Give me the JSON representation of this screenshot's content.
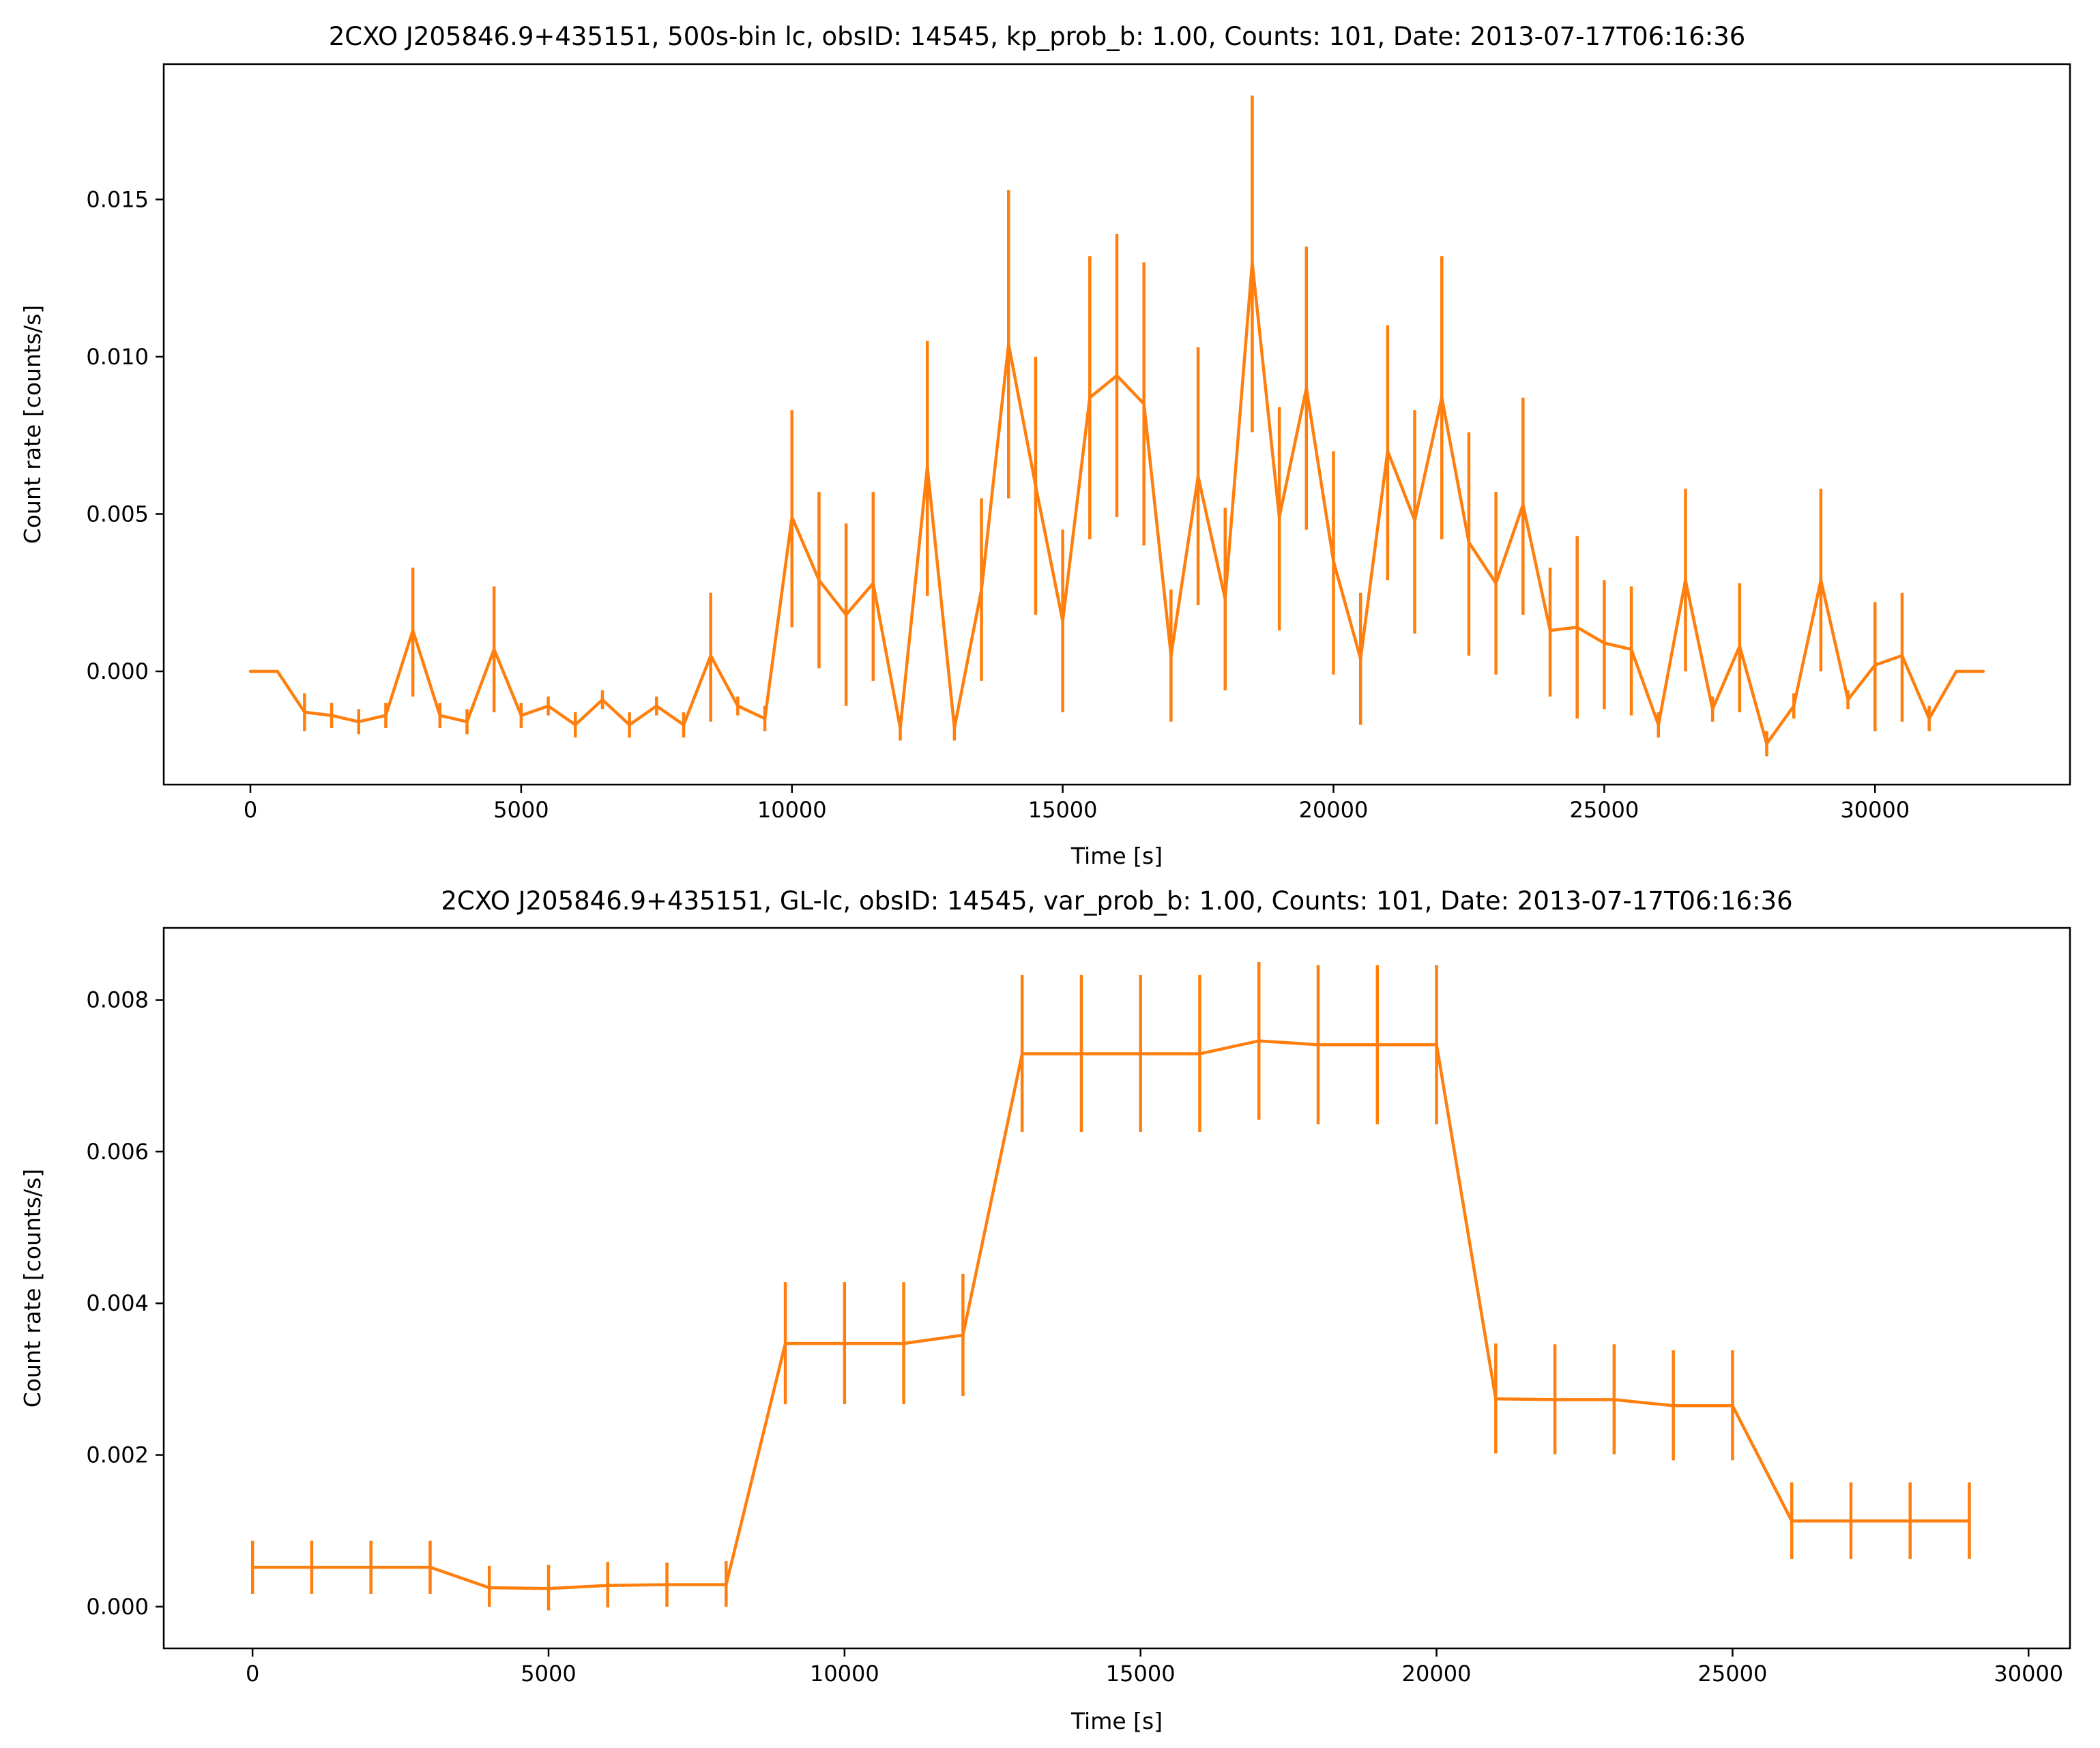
{
  "chart_data": [
    {
      "type": "line",
      "title": "2CXO J205846.9+435151, 500s-bin lc, obsID: 14545, kp_prob_b: 1.00, Counts: 101, Date: 2013-07-17T06:16:36",
      "xlabel": "Time [s]",
      "ylabel": "Count rate [counts/s]",
      "xlim": [
        -1600,
        33600
      ],
      "ylim": [
        -0.0036,
        0.0193
      ],
      "xticks": [
        0,
        5000,
        10000,
        15000,
        20000,
        25000,
        30000
      ],
      "yticks": [
        0.0,
        0.005,
        0.01,
        0.015
      ],
      "ytick_labels": [
        "0.000",
        "0.005",
        "0.010",
        "0.015"
      ],
      "color": "#ff7f0e",
      "series": [
        {
          "x": [
            0,
            500,
            1000,
            1500,
            2000,
            2500,
            3000,
            3500,
            4000,
            4500,
            5000,
            5500,
            6000,
            6500,
            7000,
            7500,
            8000,
            8500,
            9000,
            9500,
            10000,
            10500,
            11000,
            11500,
            12000,
            12500,
            13000,
            13500,
            14000,
            14500,
            15000,
            15500,
            16000,
            16500,
            17000,
            17500,
            18000,
            18500,
            19000,
            19500,
            20000,
            20500,
            21000,
            21500,
            22000,
            22500,
            23000,
            23500,
            24000,
            24500,
            25000,
            25500,
            26000,
            26500,
            27000,
            27500,
            28000,
            28500,
            29000,
            29500,
            30000,
            30500,
            31000,
            31500,
            32000
          ],
          "y": [
            0.0,
            0.0,
            -0.0013,
            -0.0014,
            -0.0016,
            -0.0014,
            0.0013,
            -0.0014,
            -0.0016,
            0.0007,
            -0.0014,
            -0.0011,
            -0.0017,
            -0.0009,
            -0.0017,
            -0.0011,
            -0.0017,
            0.0005,
            -0.0011,
            -0.0015,
            0.0049,
            0.0029,
            0.0018,
            0.0028,
            -0.0018,
            0.0065,
            -0.0018,
            0.0026,
            0.0104,
            0.0059,
            0.0016,
            0.0087,
            0.0094,
            0.0085,
            0.0005,
            0.0062,
            0.0023,
            0.013,
            0.0049,
            0.009,
            0.0035,
            0.0004,
            0.007,
            0.0048,
            0.0087,
            0.0041,
            0.0028,
            0.0053,
            0.0013,
            0.0014,
            0.0009,
            0.0007,
            -0.0017,
            0.0029,
            -0.0012,
            0.0008,
            -0.0023,
            -0.0011,
            0.0029,
            -0.0009,
            0.0002,
            0.0005,
            -0.0015,
            0.0,
            0.0
          ],
          "yerr_low": [
            0,
            0,
            0.0006,
            0.0004,
            0.0004,
            0.0004,
            0.0021,
            0.0004,
            0.0004,
            0.002,
            0.0004,
            0.0003,
            0.0004,
            0.0003,
            0.0004,
            0.0003,
            0.0004,
            0.0021,
            0.0003,
            0.0004,
            0.0035,
            0.0028,
            0.0029,
            0.0031,
            0.0004,
            0.0041,
            0.0004,
            0.0029,
            0.0049,
            0.0041,
            0.0029,
            0.0045,
            0.0045,
            0.0045,
            0.0021,
            0.0041,
            0.0029,
            0.0054,
            0.0036,
            0.0045,
            0.0036,
            0.0021,
            0.0041,
            0.0036,
            0.0045,
            0.0036,
            0.0029,
            0.0035,
            0.0021,
            0.0029,
            0.0021,
            0.0021,
            0.0004,
            0.0029,
            0.0004,
            0.0021,
            0.0004,
            0.0004,
            0.0029,
            0.0003,
            0.0021,
            0.0021,
            0.0004,
            0,
            0
          ],
          "yerr_high": [
            0,
            0,
            0.0006,
            0.0004,
            0.0004,
            0.0004,
            0.002,
            0.0004,
            0.0004,
            0.002,
            0.0004,
            0.0003,
            0.0004,
            0.0003,
            0.0004,
            0.0003,
            0.0004,
            0.002,
            0.0003,
            0.0004,
            0.0034,
            0.0028,
            0.0029,
            0.0029,
            0.0004,
            0.004,
            0.0004,
            0.0029,
            0.0049,
            0.0041,
            0.0029,
            0.0045,
            0.0045,
            0.0045,
            0.0021,
            0.0041,
            0.0029,
            0.0053,
            0.0035,
            0.0045,
            0.0035,
            0.0021,
            0.004,
            0.0035,
            0.0045,
            0.0035,
            0.0029,
            0.0034,
            0.002,
            0.0029,
            0.002,
            0.002,
            0.0004,
            0.0029,
            0.0004,
            0.002,
            0.0004,
            0.0004,
            0.0029,
            0.0003,
            0.002,
            0.002,
            0.0004,
            0,
            0
          ]
        }
      ]
    },
    {
      "type": "line",
      "title": "2CXO J205846.9+435151, GL-lc, obsID: 14545, var_prob_b: 1.00, Counts: 101, Date: 2013-07-17T06:16:36",
      "xlabel": "Time [s]",
      "ylabel": "Count rate [counts/s]",
      "xlim": [
        -1500,
        30700
      ],
      "ylim": [
        -0.00055,
        0.00895
      ],
      "xticks": [
        0,
        5000,
        10000,
        15000,
        20000,
        25000,
        30000
      ],
      "yticks": [
        0.0,
        0.002,
        0.004,
        0.006,
        0.008
      ],
      "ytick_labels": [
        "0.000",
        "0.002",
        "0.004",
        "0.006",
        "0.008"
      ],
      "color": "#ff7f0e",
      "series": [
        {
          "x": [
            0,
            1000,
            2000,
            3000,
            4000,
            5000,
            6000,
            7000,
            8000,
            9000,
            10000,
            11000,
            12000,
            13000,
            14000,
            15000,
            16000,
            17000,
            18000,
            19000,
            20000,
            21000,
            22000,
            23000,
            24000,
            25000,
            26000,
            27000,
            28000,
            29000
          ],
          "y": [
            0.00052,
            0.00052,
            0.00052,
            0.00052,
            0.00025,
            0.00024,
            0.00028,
            0.00029,
            0.00029,
            0.00347,
            0.00347,
            0.00347,
            0.00358,
            0.00729,
            0.00729,
            0.00729,
            0.00729,
            0.00746,
            0.00741,
            0.00741,
            0.00741,
            0.00274,
            0.00273,
            0.00273,
            0.00265,
            0.00265,
            0.00113,
            0.00113,
            0.00113,
            0.00113
          ],
          "yerr_low": [
            0.00035,
            0.00035,
            0.00035,
            0.00035,
            0.00025,
            0.00029,
            0.00029,
            0.00029,
            0.00029,
            0.0008,
            0.0008,
            0.0008,
            0.0008,
            0.00103,
            0.00103,
            0.00103,
            0.00103,
            0.00104,
            0.00105,
            0.00105,
            0.00105,
            0.00072,
            0.00072,
            0.00072,
            0.00072,
            0.00072,
            0.0005,
            0.0005,
            0.0005,
            0.0005
          ],
          "yerr_high": [
            0.00035,
            0.00035,
            0.00035,
            0.00035,
            0.00029,
            0.00031,
            0.00031,
            0.00029,
            0.00031,
            0.00081,
            0.00081,
            0.00081,
            0.00081,
            0.00104,
            0.00104,
            0.00104,
            0.00104,
            0.00104,
            0.00105,
            0.00105,
            0.00105,
            0.00073,
            0.00073,
            0.00073,
            0.00073,
            0.00073,
            0.00051,
            0.00051,
            0.00051,
            0.00051
          ]
        }
      ]
    }
  ]
}
